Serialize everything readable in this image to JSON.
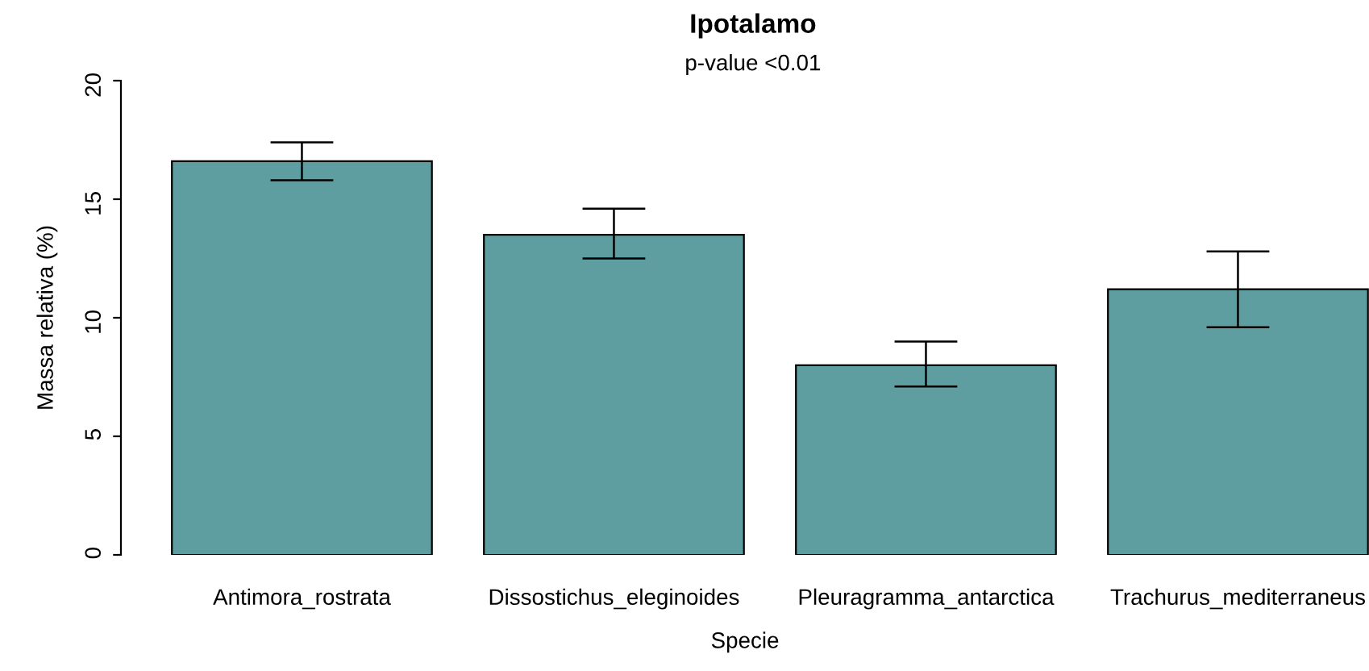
{
  "chart_data": {
    "type": "bar",
    "title": "Ipotalamo",
    "subtitle": "p-value <0.01",
    "xlabel": "Specie",
    "ylabel": "Massa relativa (%)",
    "categories": [
      "Antimora_rostrata",
      "Dissostichus_eleginoides",
      "Pleuragramma_antarctica",
      "Trachurus_mediterraneus"
    ],
    "values": [
      16.6,
      13.5,
      8.0,
      11.2
    ],
    "errors": [
      [
        15.8,
        17.4
      ],
      [
        12.5,
        14.6
      ],
      [
        7.1,
        9.0
      ],
      [
        9.6,
        12.8
      ]
    ],
    "color": "#5f9ea0",
    "ylim": [
      0,
      20
    ],
    "yticks": [
      0,
      5,
      10,
      15,
      20
    ],
    "grid": false,
    "legend": false
  }
}
